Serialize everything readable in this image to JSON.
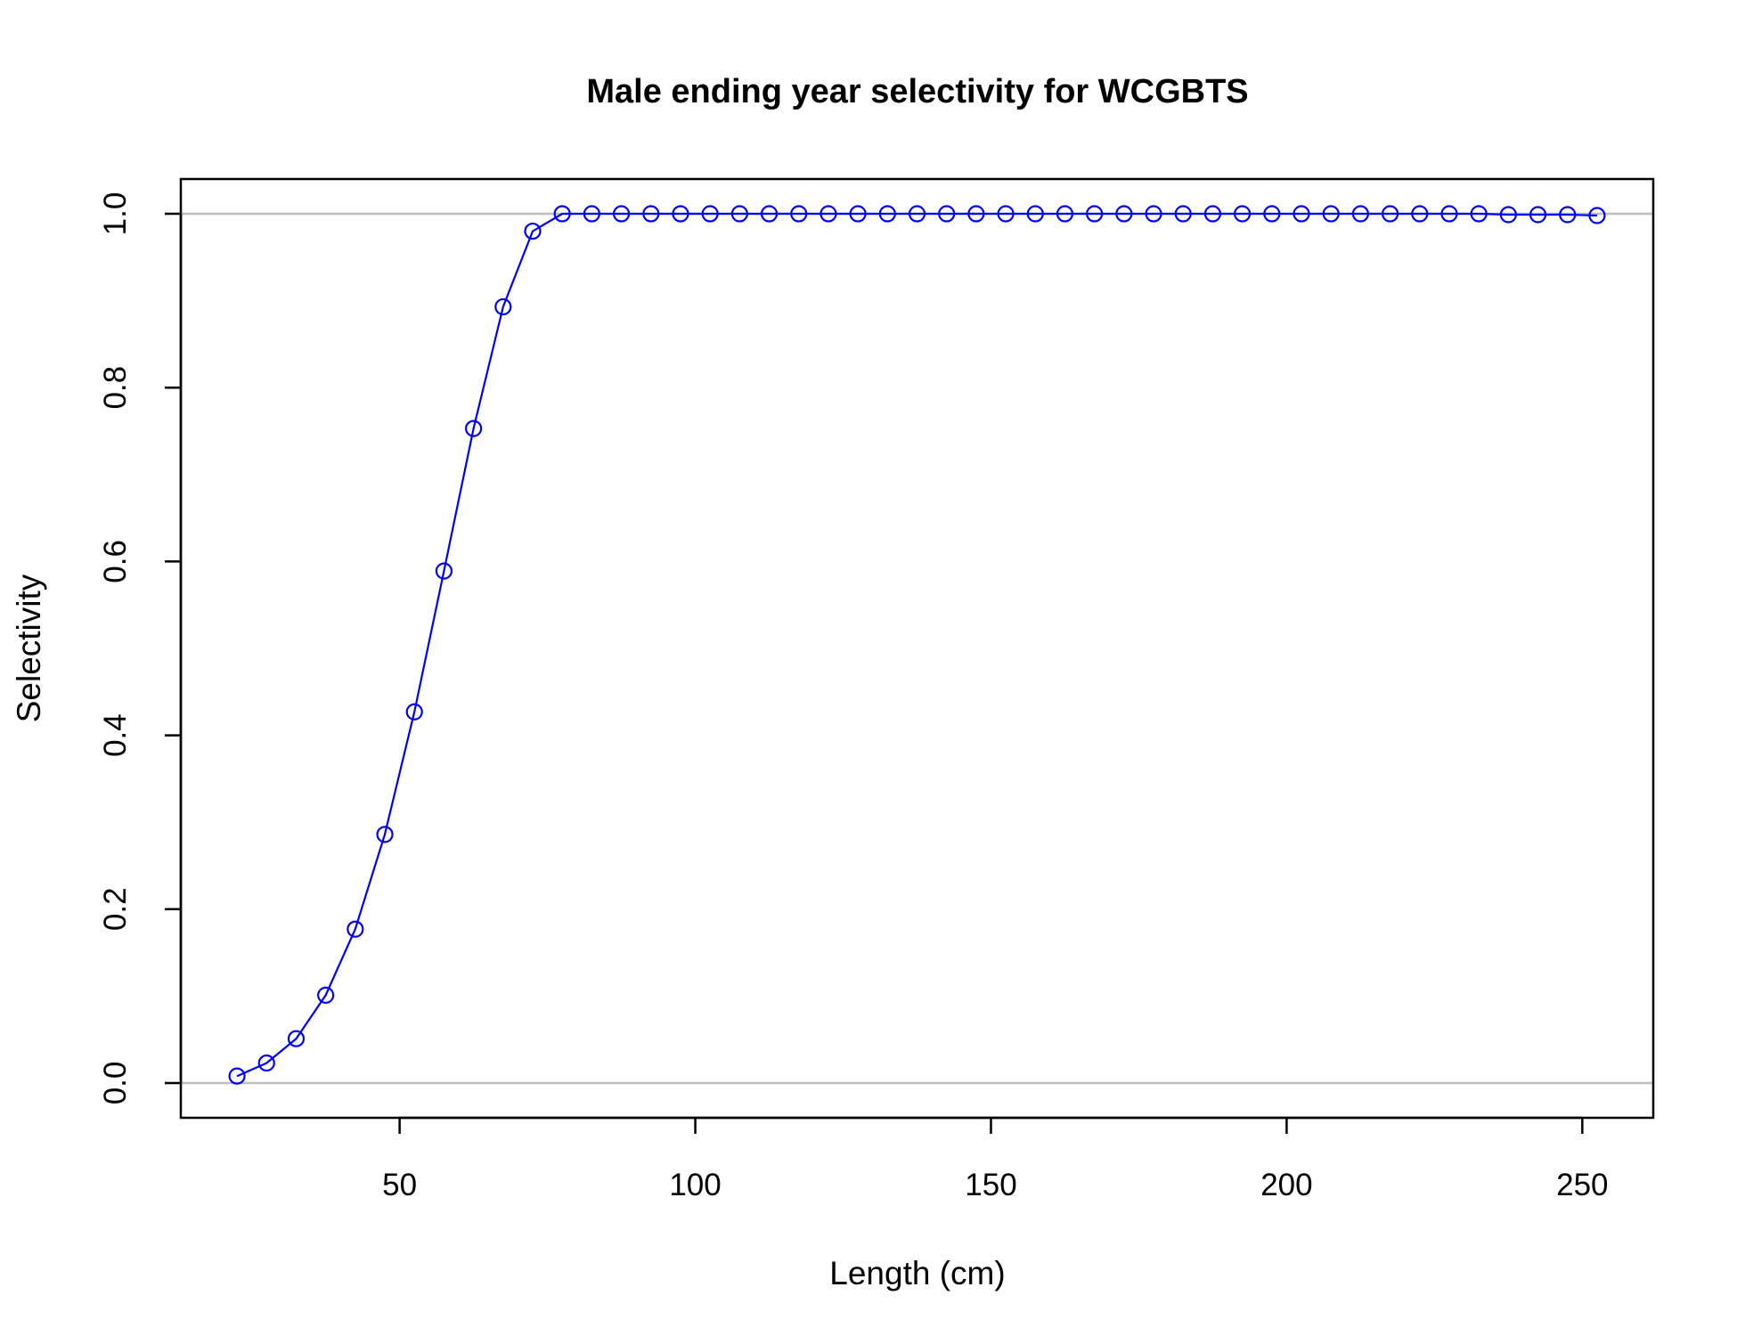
{
  "chart_data": {
    "type": "line",
    "title": "Male ending year selectivity for WCGBTS",
    "xlabel": "Length (cm)",
    "ylabel": "Selectivity",
    "xlim": [
      13,
      262
    ],
    "ylim": [
      -0.04,
      1.04
    ],
    "x_ticks": [
      50,
      100,
      150,
      200,
      250
    ],
    "x_tick_labels": [
      "50",
      "100",
      "150",
      "200",
      "250"
    ],
    "y_ticks": [
      0,
      0.2,
      0.4,
      0.6,
      0.8,
      1.0
    ],
    "y_tick_labels": [
      "0.0",
      "0.2",
      "0.4",
      "0.6",
      "0.8",
      "1.0"
    ],
    "reference_lines": [
      0,
      1
    ],
    "grid": false,
    "series": [
      {
        "color": "#0000ff",
        "marker": "open-circle",
        "x": [
          22.5,
          27.5,
          32.5,
          37.5,
          42.5,
          47.5,
          52.5,
          57.5,
          62.5,
          67.5,
          72.5,
          77.5,
          82.5,
          87.5,
          92.5,
          97.5,
          102.5,
          107.5,
          112.5,
          117.5,
          122.5,
          127.5,
          132.5,
          137.5,
          142.5,
          147.5,
          152.5,
          157.5,
          162.5,
          167.5,
          172.5,
          177.5,
          182.5,
          187.5,
          192.5,
          197.5,
          202.5,
          207.5,
          212.5,
          217.5,
          222.5,
          227.5,
          232.5,
          237.5,
          242.5,
          247.5,
          252.5
        ],
        "values": [
          0.008,
          0.023,
          0.051,
          0.101,
          0.177,
          0.286,
          0.427,
          0.589,
          0.753,
          0.893,
          0.98,
          1.0,
          1.0,
          1.0,
          1.0,
          1.0,
          1.0,
          1.0,
          1.0,
          1.0,
          1.0,
          1.0,
          1.0,
          1.0,
          1.0,
          1.0,
          1.0,
          1.0,
          1.0,
          1.0,
          1.0,
          1.0,
          1.0,
          1.0,
          1.0,
          1.0,
          1.0,
          1.0,
          1.0,
          1.0,
          1.0,
          1.0,
          1.0,
          0.999,
          0.999,
          0.999,
          0.998
        ]
      }
    ],
    "colors": {
      "series": "#0000ff",
      "reference_line": "#bebebe",
      "axis": "#000000"
    }
  }
}
